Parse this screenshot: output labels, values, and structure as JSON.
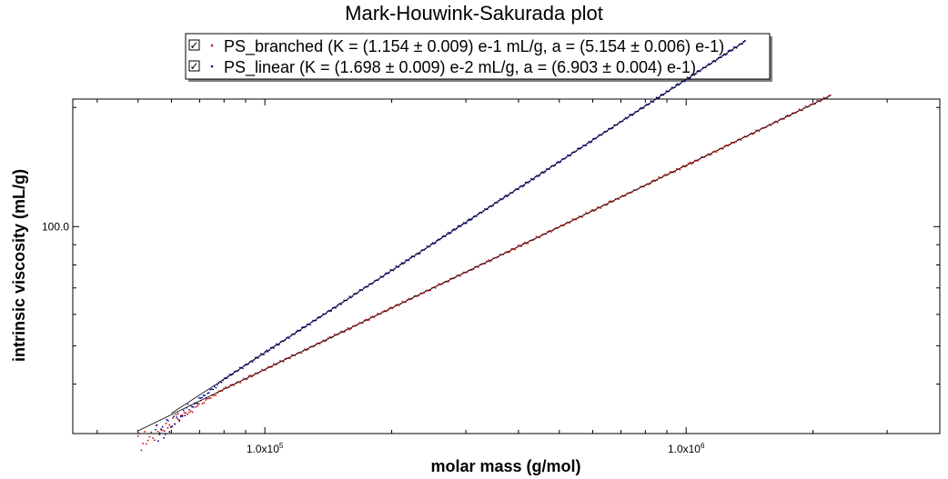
{
  "chart_data": {
    "type": "scatter",
    "title": "Mark-Houwink-Sakurada plot",
    "xlabel": "molar mass (g/mol)",
    "ylabel": "intrinsic viscosity (mL/g)",
    "xscale": "log",
    "yscale": "log",
    "xlim": [
      35000,
      4000000
    ],
    "ylim": [
      30,
      210
    ],
    "x_ticks": [
      {
        "value": 100000,
        "mantissa": "1.0x10",
        "exponent": "5"
      },
      {
        "value": 1000000,
        "mantissa": "1.0x10",
        "exponent": "6"
      }
    ],
    "y_ticks": [
      {
        "value": 100,
        "label": "100.0"
      }
    ],
    "grid": false,
    "legend_position": "top",
    "legend_checked": "☑",
    "fit_color": "#000000",
    "series": [
      {
        "name": "PS_branched (K = (1.154 ± 0.009) e-1 mL/g, a = (5.154 ± 0.006) e-1)",
        "color": "#cc0000",
        "K": 0.1154,
        "a": 0.5154,
        "x_range": [
          50000,
          2200000
        ],
        "fit_range": [
          50000,
          2200000
        ],
        "checked": true
      },
      {
        "name": "PS_linear (K = (1.698 ± 0.009) e-2 mL/g, a = (6.903 ± 0.004) e-1)",
        "color": "#000099",
        "K": 0.01698,
        "a": 0.6903,
        "x_range": [
          55000,
          1380000
        ],
        "fit_range": [
          60000,
          1380000
        ],
        "checked": true
      }
    ]
  }
}
